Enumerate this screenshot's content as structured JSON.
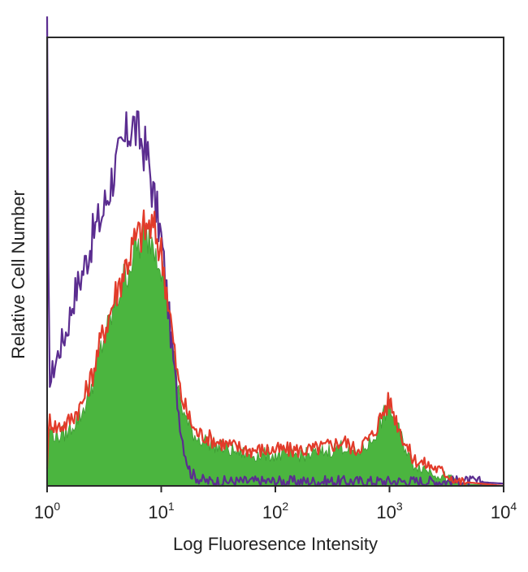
{
  "chart_data": {
    "type": "area",
    "title": "",
    "xlabel": "Log Fluoresence Intensity",
    "ylabel": "Relative Cell Number",
    "xscale": "log",
    "xlim": [
      1,
      10000
    ],
    "ylim": [
      0,
      100
    ],
    "grid": false,
    "x_ticks": [
      {
        "value": 1,
        "base": "10",
        "exp": "0"
      },
      {
        "value": 10,
        "base": "10",
        "exp": "1"
      },
      {
        "value": 100,
        "base": "10",
        "exp": "2"
      },
      {
        "value": 1000,
        "base": "10",
        "exp": "3"
      },
      {
        "value": 10000,
        "base": "10",
        "exp": "4"
      }
    ],
    "series": [
      {
        "color": "#5b2d90",
        "style": "line",
        "x": [
          1,
          1.03,
          1.06,
          1.1,
          1.2,
          1.3,
          1.5,
          1.7,
          2,
          2.3,
          2.6,
          3,
          3.4,
          3.8,
          4.3,
          5,
          5.6,
          6.3,
          7,
          7.8,
          8.5,
          9.3,
          10,
          11,
          12,
          13,
          14,
          15,
          16,
          17,
          18,
          20,
          22,
          25,
          30,
          40,
          60,
          100,
          150,
          250,
          500,
          1000,
          2000,
          3000,
          5000,
          10000
        ],
        "y": [
          100,
          40,
          22,
          25,
          28,
          31,
          35,
          42,
          47,
          52,
          57,
          60,
          65,
          70,
          73,
          78,
          81,
          78,
          76,
          72,
          65,
          60,
          55,
          45,
          35,
          26,
          18,
          12,
          8,
          5,
          3,
          2,
          1.5,
          1,
          1,
          1,
          1,
          1,
          1,
          1,
          1,
          1,
          1,
          1,
          1,
          0.5
        ]
      },
      {
        "color": "#e23b2a",
        "style": "line",
        "x": [
          1,
          1.05,
          1.2,
          1.5,
          2,
          2.5,
          3,
          3.5,
          4,
          5,
          6,
          7,
          8,
          9,
          10,
          11,
          12,
          13,
          14,
          15,
          17,
          20,
          25,
          30,
          40,
          60,
          100,
          150,
          200,
          300,
          400,
          500,
          700,
          900,
          1000,
          1100,
          1300,
          1600,
          2000,
          2500,
          3000,
          4000,
          10000
        ],
        "y": [
          5,
          15,
          13,
          14,
          18,
          25,
          33,
          38,
          43,
          50,
          55,
          57,
          58,
          56,
          52,
          45,
          38,
          30,
          24,
          20,
          16,
          12,
          11,
          10,
          9,
          8,
          8,
          8,
          8,
          9,
          10,
          8,
          11,
          17,
          19,
          16,
          11,
          6,
          5,
          4,
          3,
          1,
          0
        ]
      },
      {
        "color": "#4bb53f",
        "style": "fill",
        "x": [
          1,
          1.05,
          1.2,
          1.5,
          2,
          2.5,
          3,
          3.5,
          4,
          5,
          6,
          7,
          8,
          9,
          10,
          11,
          12,
          13,
          14,
          15,
          17,
          20,
          25,
          30,
          40,
          60,
          100,
          150,
          200,
          300,
          400,
          500,
          700,
          900,
          1000,
          1100,
          1300,
          1600,
          2000,
          2500,
          3000,
          4000,
          10000
        ],
        "y": [
          4,
          13,
          11,
          12,
          16,
          23,
          31,
          36,
          41,
          48,
          53,
          55,
          56,
          54,
          50,
          43,
          36,
          28,
          22,
          18,
          14,
          11,
          10,
          9,
          8,
          7,
          7,
          7,
          7,
          8,
          9,
          7,
          10,
          16,
          18,
          15,
          10,
          5,
          4,
          3,
          2,
          0.5,
          0
        ]
      }
    ]
  }
}
